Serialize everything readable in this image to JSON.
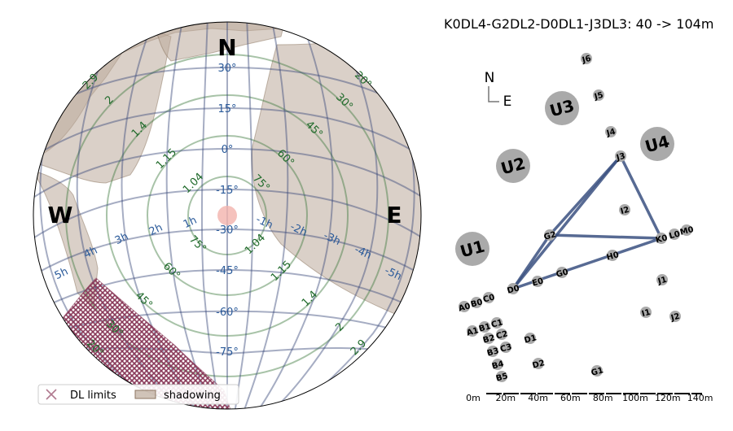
{
  "array_title": "K0DL4-G2DL2-D0DL1-J3DL3: 40 -> 104m",
  "sky": {
    "cardinals": {
      "n": "N",
      "w": "W",
      "e": "E"
    },
    "dec_labels": [
      {
        "text": "30°",
        "dec": 30
      },
      {
        "text": "15°",
        "dec": 15
      },
      {
        "text": "0°",
        "dec": 0
      },
      {
        "text": "-15°",
        "dec": -15
      },
      {
        "text": "-30°",
        "dec": -30
      },
      {
        "text": "-45°",
        "dec": -45
      },
      {
        "text": "-60°",
        "dec": -60
      },
      {
        "text": "-75°",
        "dec": -75
      }
    ],
    "ha_labels_left": [
      "1h",
      "2h",
      "3h",
      "4h",
      "5h"
    ],
    "ha_labels_right": [
      "-1h",
      "-2h",
      "-3h",
      "-4h",
      "-5h"
    ],
    "alt_labels_upper": [
      "1.04",
      "1.15",
      "1.4",
      "2",
      "2.9",
      "75°",
      "60°",
      "45°",
      "30°",
      "20°"
    ],
    "alt_labels_lower": [
      "75°",
      "60°",
      "45°",
      "30°",
      "20°",
      "1.04",
      "1.15",
      "1.4",
      "2",
      "2.9"
    ],
    "legend": {
      "dl_limits": "DL limits",
      "shadowing": "shadowing"
    },
    "colors": {
      "shadow": "#bca99a",
      "dl": "#8a3a5a",
      "ha": "#3a4a7a",
      "alt": "#3e7a3e",
      "dec_text": "#2a5a9a"
    }
  },
  "array": {
    "compass": {
      "n": "N",
      "e": "E"
    },
    "scale_labels": [
      "0m",
      "20m",
      "40m",
      "60m",
      "80m",
      "100m",
      "120m",
      "140m"
    ],
    "uts": [
      "U1",
      "U2",
      "U3",
      "U4"
    ],
    "stations": [
      "J6",
      "J5",
      "J4",
      "J3",
      "I2",
      "G2",
      "K0",
      "L0",
      "M0",
      "H0",
      "G0",
      "E0",
      "D0",
      "J1",
      "I1",
      "J2",
      "A0",
      "B0",
      "C0",
      "A1",
      "B1",
      "C1",
      "B2",
      "C2",
      "B3",
      "C3",
      "D1",
      "B4",
      "D2",
      "B5",
      "G1"
    ]
  }
}
